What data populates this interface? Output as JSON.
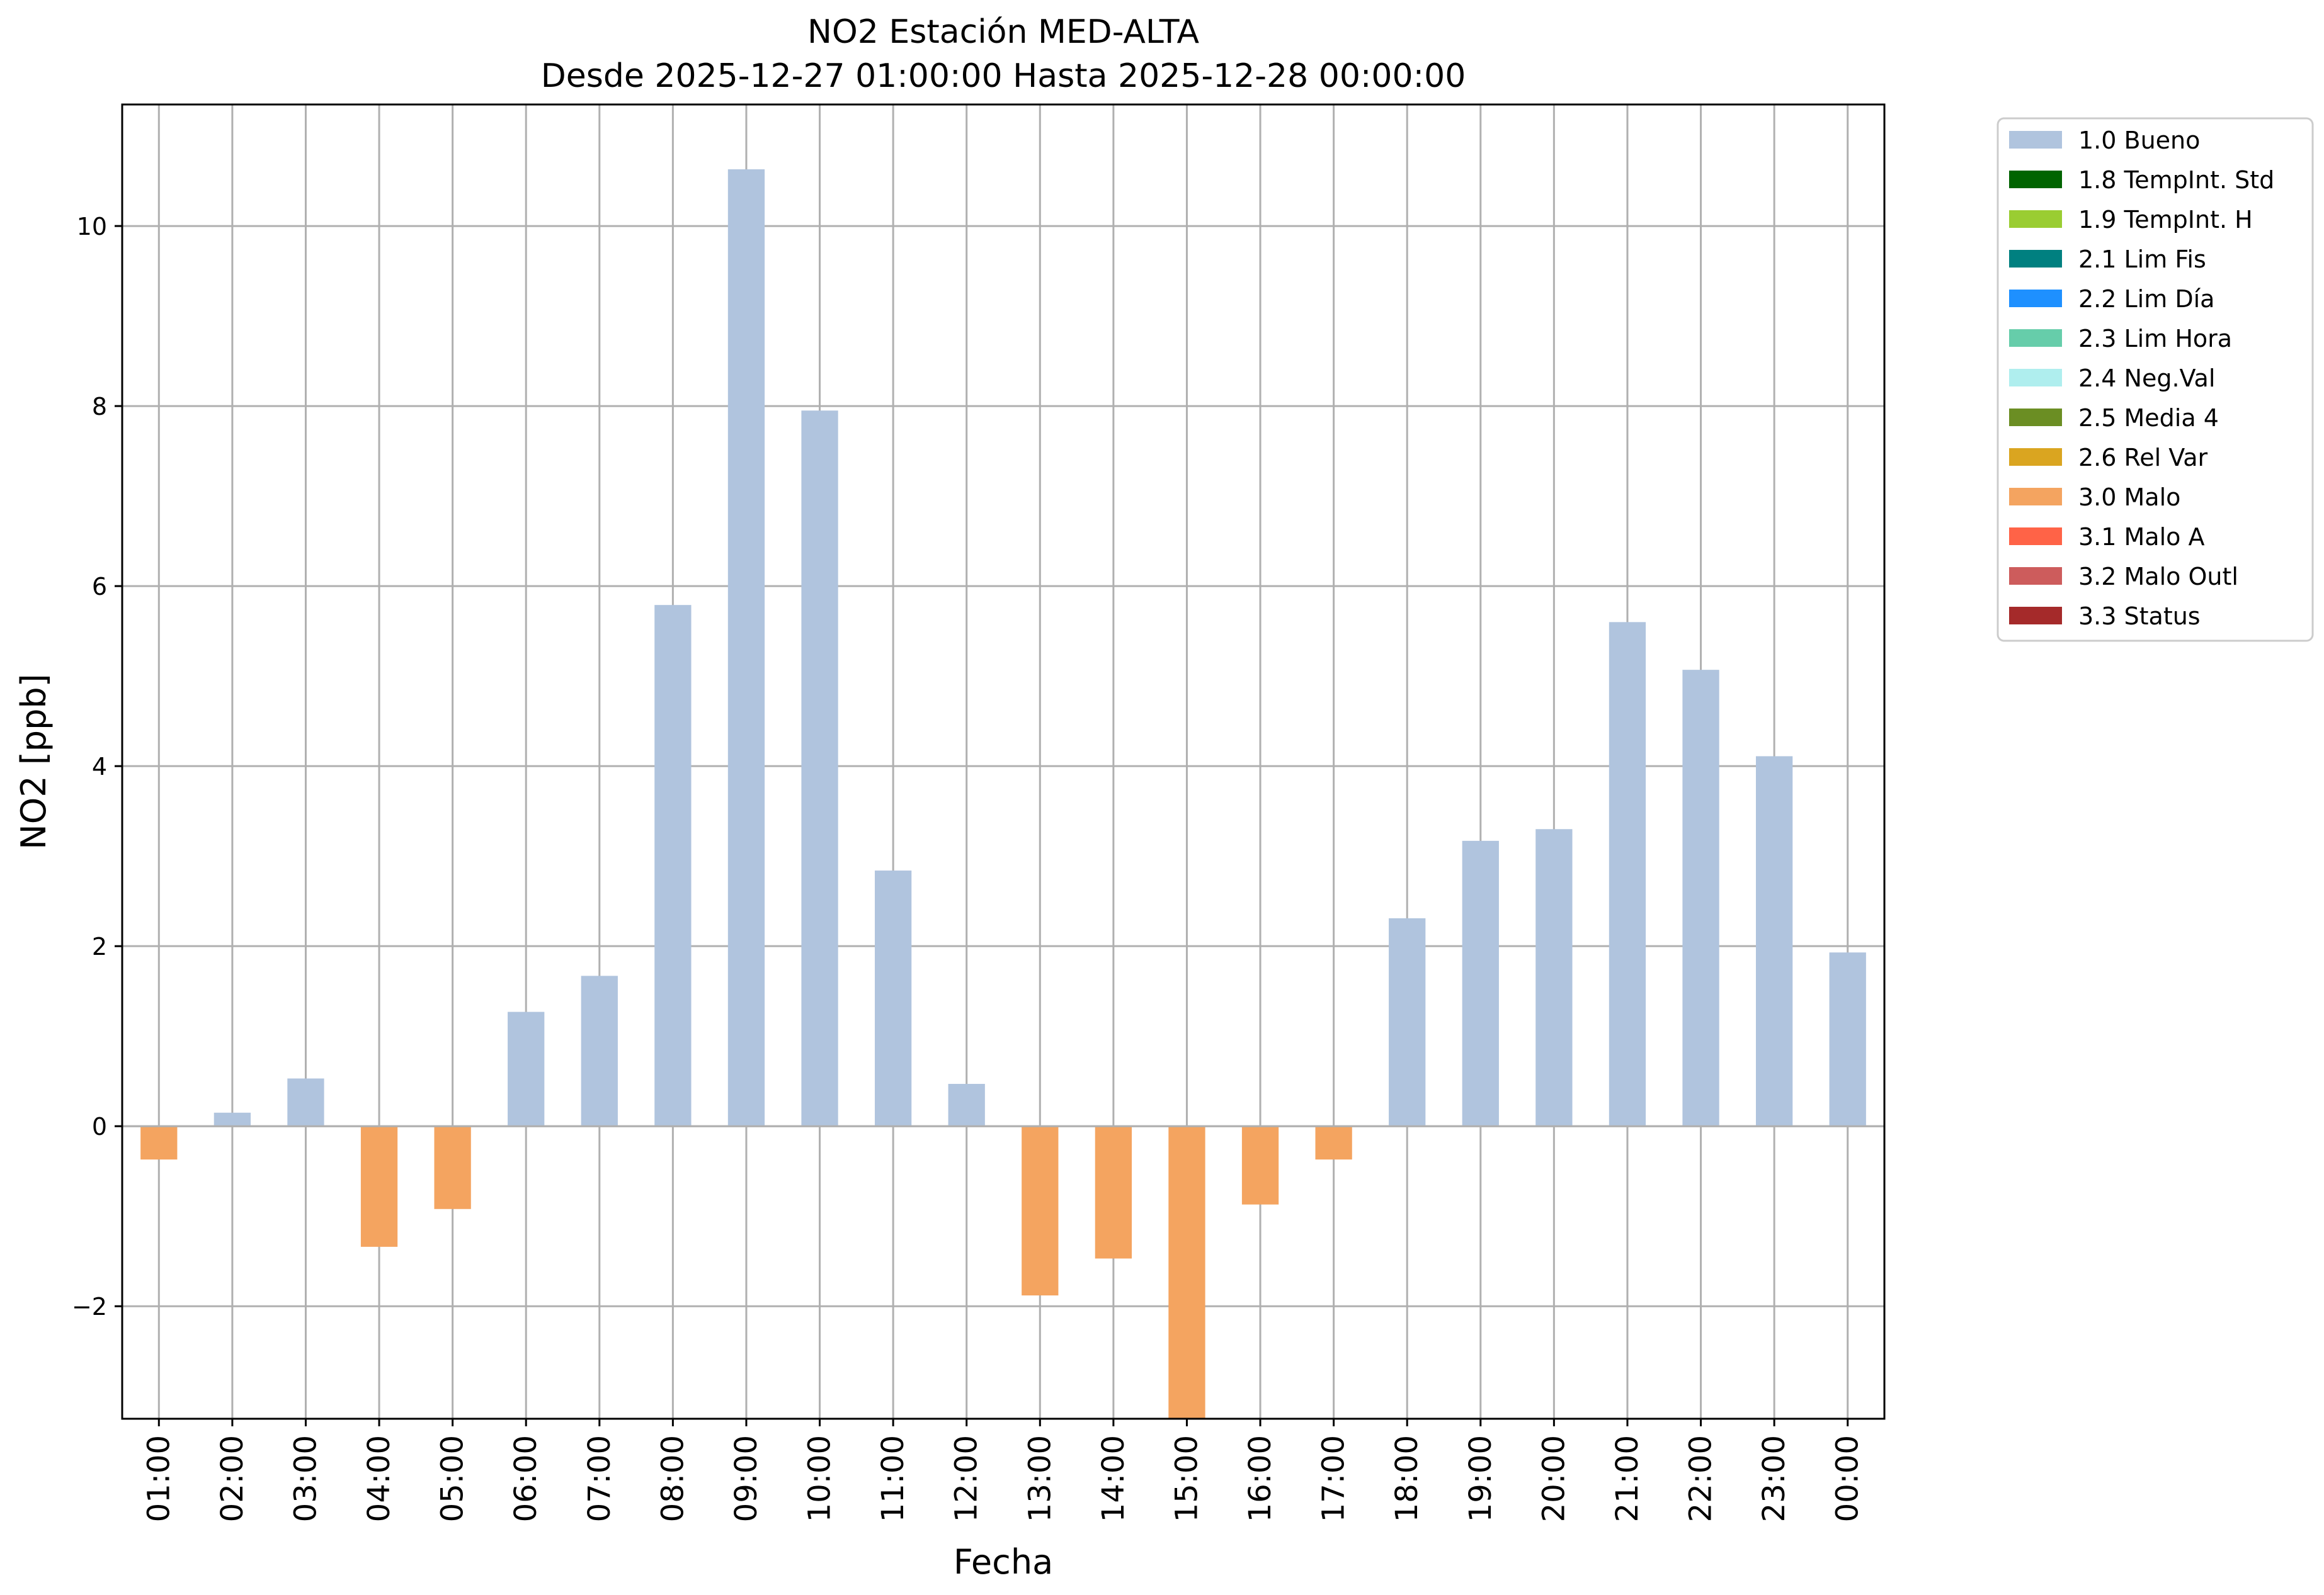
{
  "chart_data": {
    "type": "bar",
    "title": "NO2 Estación MED-ALTA",
    "subtitle": "Desde 2025-12-27 01:00:00 Hasta 2025-12-28 00:00:00",
    "xlabel": "Fecha",
    "ylabel": "NO2 [ppb]",
    "ylim": [
      -3.25,
      11.35
    ],
    "yticks": [
      -2,
      0,
      2,
      4,
      6,
      8,
      10
    ],
    "grid": true,
    "legend_position": "outside-top-right",
    "categories": [
      "01:00",
      "02:00",
      "03:00",
      "04:00",
      "05:00",
      "06:00",
      "07:00",
      "08:00",
      "09:00",
      "10:00",
      "11:00",
      "12:00",
      "13:00",
      "14:00",
      "15:00",
      "16:00",
      "17:00",
      "18:00",
      "19:00",
      "20:00",
      "21:00",
      "22:00",
      "23:00",
      "00:00"
    ],
    "values": [
      -0.37,
      0.15,
      0.53,
      -1.34,
      -0.92,
      1.27,
      1.67,
      5.79,
      10.63,
      7.95,
      2.84,
      0.47,
      -1.88,
      -1.47,
      -3.25,
      -0.87,
      -0.37,
      2.31,
      3.17,
      3.3,
      5.6,
      5.07,
      4.11,
      1.93
    ],
    "flags": [
      "3.0",
      "1.0",
      "1.0",
      "3.0",
      "3.0",
      "1.0",
      "1.0",
      "1.0",
      "1.0",
      "1.0",
      "1.0",
      "1.0",
      "3.0",
      "3.0",
      "3.0",
      "3.0",
      "3.0",
      "1.0",
      "1.0",
      "1.0",
      "1.0",
      "1.0",
      "1.0",
      "1.0"
    ],
    "legend": [
      {
        "code": "1.0",
        "label": "1.0 Bueno",
        "color": "#b0c4de"
      },
      {
        "code": "1.8",
        "label": "1.8 TempInt. Std",
        "color": "#006400"
      },
      {
        "code": "1.9",
        "label": "1.9 TempInt. H",
        "color": "#9acd32"
      },
      {
        "code": "2.1",
        "label": "2.1 Lim Fis",
        "color": "#008080"
      },
      {
        "code": "2.2",
        "label": "2.2 Lim Día",
        "color": "#1e90ff"
      },
      {
        "code": "2.3",
        "label": "2.3 Lim Hora",
        "color": "#66cdaa"
      },
      {
        "code": "2.4",
        "label": "2.4 Neg.Val",
        "color": "#afeeee"
      },
      {
        "code": "2.5",
        "label": "2.5 Media 4",
        "color": "#6b8e23"
      },
      {
        "code": "2.6",
        "label": "2.6 Rel Var",
        "color": "#daa520"
      },
      {
        "code": "3.0",
        "label": "3.0 Malo",
        "color": "#f4a460"
      },
      {
        "code": "3.1",
        "label": "3.1 Malo A",
        "color": "#ff6347"
      },
      {
        "code": "3.2",
        "label": "3.2 Malo Outl",
        "color": "#cd5c5c"
      },
      {
        "code": "3.3",
        "label": "3.3 Status",
        "color": "#a52a2a"
      }
    ]
  }
}
